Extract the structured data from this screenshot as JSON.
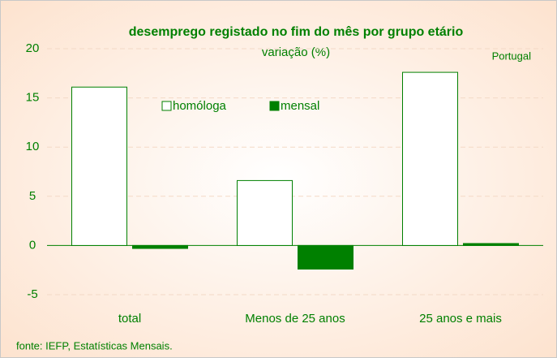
{
  "chart_data": {
    "type": "bar",
    "title": "desemprego registado no fim do mês por grupo etário",
    "subtitle": "variação (%)",
    "annotation": "Portugal",
    "source": "fonte: IEFP, Estatísticas Mensais.",
    "categories": [
      "total",
      "Menos de 25 anos",
      "25 anos e mais"
    ],
    "series": [
      {
        "name": "homóloga",
        "color": "#ffffff",
        "stroke": "#008000",
        "values": [
          16.1,
          6.6,
          17.6
        ]
      },
      {
        "name": "mensal",
        "color": "#008000",
        "stroke": "#008000",
        "values": [
          -0.3,
          -2.4,
          0.2
        ]
      }
    ],
    "ylim": [
      -5,
      20
    ],
    "yticks": [
      -5,
      0,
      5,
      10,
      15,
      20
    ],
    "grid": true
  }
}
